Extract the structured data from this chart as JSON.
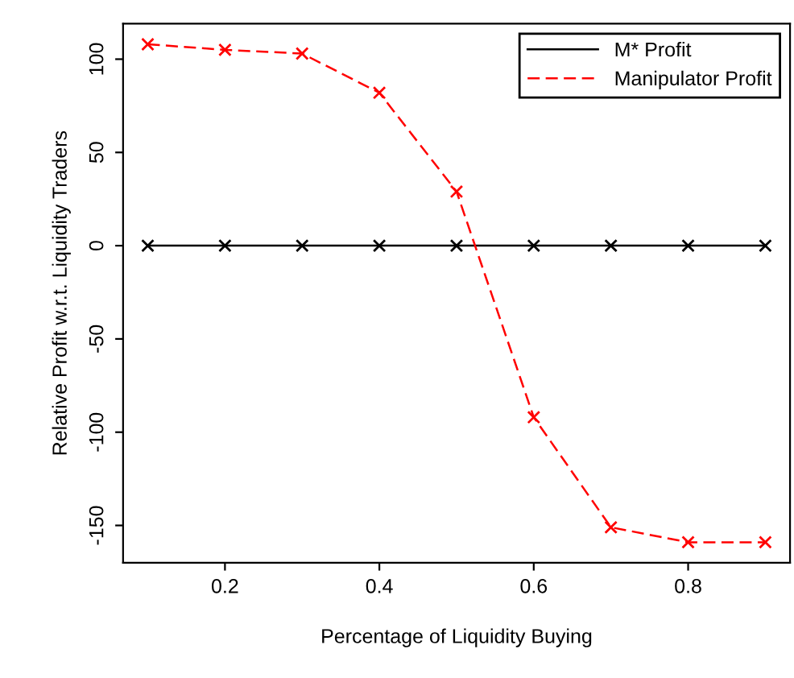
{
  "chart_data": {
    "type": "line",
    "xlabel": "Percentage of Liquidity Buying",
    "ylabel": "Relative Profit w.r.t. Liquidity Traders",
    "x": [
      0.1,
      0.2,
      0.3,
      0.4,
      0.5,
      0.6,
      0.7,
      0.8,
      0.9
    ],
    "series": [
      {
        "name": "M* Profit",
        "color": "#000000",
        "line_style": "solid",
        "values": [
          0,
          0,
          0,
          0,
          0,
          0,
          0,
          0,
          0
        ]
      },
      {
        "name": "Manipulator Profit",
        "color": "#ff0000",
        "line_style": "dashed",
        "values": [
          108,
          105,
          103,
          82,
          29,
          -92,
          -151,
          -159,
          -159
        ]
      }
    ],
    "xlim": [
      0.068,
      0.932
    ],
    "ylim": [
      -170,
      119
    ],
    "xticks": [
      0.2,
      0.4,
      0.6,
      0.8
    ],
    "yticks": [
      -150,
      -100,
      -50,
      0,
      50,
      100
    ],
    "marker": "cross",
    "legend": "top right",
    "grid": false
  }
}
